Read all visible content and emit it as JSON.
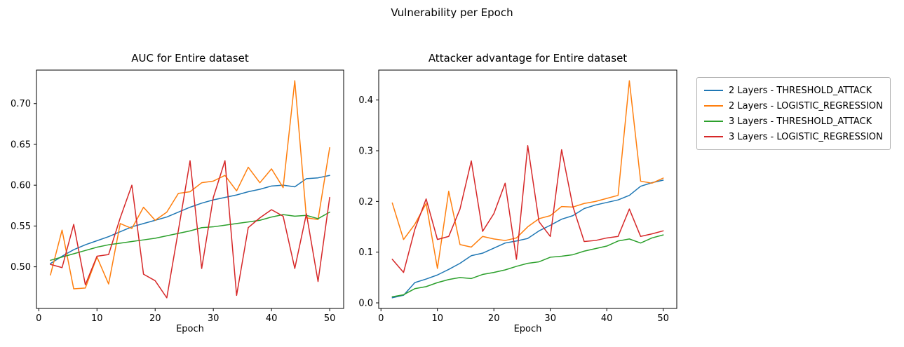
{
  "figure": {
    "suptitle": "Vulnerability per Epoch",
    "background": "#ffffff"
  },
  "legend": {
    "position": "outside-upper-right",
    "items": [
      {
        "label": "2 Layers - THRESHOLD_ATTACK",
        "color": "#1f77b4"
      },
      {
        "label": "2 Layers - LOGISTIC_REGRESSION",
        "color": "#ff7f0e"
      },
      {
        "label": "3 Layers - THRESHOLD_ATTACK",
        "color": "#2ca02c"
      },
      {
        "label": "3 Layers - LOGISTIC_REGRESSION",
        "color": "#d62728"
      }
    ]
  },
  "chart_data": [
    {
      "type": "line",
      "title": "AUC for Entire dataset",
      "xlabel": "Epoch",
      "ylabel": "",
      "grid": false,
      "x": [
        2,
        4,
        6,
        8,
        10,
        12,
        14,
        16,
        18,
        20,
        22,
        24,
        26,
        28,
        30,
        32,
        34,
        36,
        38,
        40,
        42,
        44,
        46,
        48,
        50
      ],
      "xlim": [
        -0.4,
        52.4
      ],
      "ylim": [
        0.449,
        0.741
      ],
      "xticks": [
        0,
        10,
        20,
        30,
        40,
        50
      ],
      "xtick_labels": [
        "0",
        "10",
        "20",
        "30",
        "40",
        "50"
      ],
      "yticks": [
        0.5,
        0.55,
        0.6,
        0.65,
        0.7
      ],
      "ytick_labels": [
        "0.50",
        "0.55",
        "0.60",
        "0.65",
        "0.70"
      ],
      "series": [
        {
          "name": "2 Layers - THRESHOLD_ATTACK",
          "color": "#1f77b4",
          "values": [
            0.504,
            0.513,
            0.521,
            0.527,
            0.532,
            0.537,
            0.543,
            0.549,
            0.553,
            0.557,
            0.561,
            0.567,
            0.573,
            0.578,
            0.582,
            0.585,
            0.588,
            0.592,
            0.595,
            0.599,
            0.6,
            0.598,
            0.608,
            0.609,
            0.612
          ]
        },
        {
          "name": "2 Layers - LOGISTIC_REGRESSION",
          "color": "#ff7f0e",
          "values": [
            0.49,
            0.545,
            0.473,
            0.474,
            0.512,
            0.479,
            0.553,
            0.547,
            0.573,
            0.557,
            0.567,
            0.59,
            0.592,
            0.603,
            0.605,
            0.612,
            0.593,
            0.622,
            0.603,
            0.62,
            0.597,
            0.728,
            0.56,
            0.558,
            0.646
          ]
        },
        {
          "name": "3 Layers - THRESHOLD_ATTACK",
          "color": "#2ca02c",
          "values": [
            0.508,
            0.512,
            0.516,
            0.52,
            0.524,
            0.527,
            0.529,
            0.531,
            0.533,
            0.535,
            0.538,
            0.541,
            0.544,
            0.548,
            0.549,
            0.551,
            0.553,
            0.555,
            0.557,
            0.561,
            0.564,
            0.562,
            0.563,
            0.559,
            0.567
          ]
        },
        {
          "name": "3 Layers - LOGISTIC_REGRESSION",
          "color": "#d62728",
          "values": [
            0.503,
            0.499,
            0.552,
            0.478,
            0.513,
            0.515,
            0.56,
            0.6,
            0.491,
            0.483,
            0.462,
            0.545,
            0.63,
            0.498,
            0.585,
            0.63,
            0.465,
            0.548,
            0.56,
            0.57,
            0.562,
            0.498,
            0.565,
            0.482,
            0.585
          ]
        }
      ]
    },
    {
      "type": "line",
      "title": "Attacker advantage for Entire dataset",
      "xlabel": "Epoch",
      "ylabel": "",
      "grid": false,
      "x": [
        2,
        4,
        6,
        8,
        10,
        12,
        14,
        16,
        18,
        20,
        22,
        24,
        26,
        28,
        30,
        32,
        34,
        36,
        38,
        40,
        42,
        44,
        46,
        48,
        50
      ],
      "xlim": [
        -0.4,
        52.4
      ],
      "ylim": [
        -0.011,
        0.459
      ],
      "xticks": [
        0,
        10,
        20,
        30,
        40,
        50
      ],
      "xtick_labels": [
        "0",
        "10",
        "20",
        "30",
        "40",
        "50"
      ],
      "yticks": [
        0.0,
        0.1,
        0.2,
        0.3,
        0.4
      ],
      "ytick_labels": [
        "0.0",
        "0.1",
        "0.2",
        "0.3",
        "0.4"
      ],
      "series": [
        {
          "name": "2 Layers - THRESHOLD_ATTACK",
          "color": "#1f77b4",
          "values": [
            0.01,
            0.015,
            0.04,
            0.047,
            0.055,
            0.066,
            0.078,
            0.093,
            0.098,
            0.108,
            0.118,
            0.122,
            0.127,
            0.142,
            0.153,
            0.165,
            0.172,
            0.186,
            0.193,
            0.198,
            0.203,
            0.212,
            0.23,
            0.237,
            0.242
          ]
        },
        {
          "name": "2 Layers - LOGISTIC_REGRESSION",
          "color": "#ff7f0e",
          "values": [
            0.197,
            0.125,
            0.155,
            0.196,
            0.068,
            0.22,
            0.115,
            0.11,
            0.131,
            0.126,
            0.123,
            0.128,
            0.15,
            0.166,
            0.172,
            0.19,
            0.189,
            0.196,
            0.2,
            0.206,
            0.212,
            0.438,
            0.24,
            0.236,
            0.246
          ]
        },
        {
          "name": "3 Layers - THRESHOLD_ATTACK",
          "color": "#2ca02c",
          "values": [
            0.012,
            0.016,
            0.028,
            0.032,
            0.04,
            0.046,
            0.05,
            0.048,
            0.056,
            0.06,
            0.065,
            0.072,
            0.078,
            0.081,
            0.09,
            0.092,
            0.095,
            0.102,
            0.107,
            0.112,
            0.122,
            0.126,
            0.118,
            0.128,
            0.134
          ]
        },
        {
          "name": "3 Layers - LOGISTIC_REGRESSION",
          "color": "#d62728",
          "values": [
            0.086,
            0.06,
            0.145,
            0.205,
            0.125,
            0.131,
            0.185,
            0.28,
            0.141,
            0.176,
            0.236,
            0.086,
            0.31,
            0.16,
            0.131,
            0.302,
            0.19,
            0.121,
            0.123,
            0.128,
            0.131,
            0.185,
            0.131,
            0.136,
            0.142
          ]
        }
      ]
    }
  ]
}
